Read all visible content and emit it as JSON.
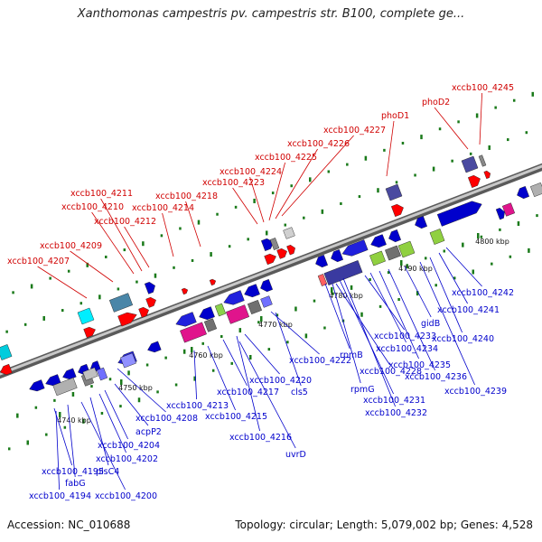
{
  "title": "Xanthomonas campestris pv. campestris str. B100, complete ge...",
  "footer": {
    "accession": "Accession: NC_010688",
    "summary": "Topology: circular; Length: 5,079,002 bp; Genes: 4,528"
  },
  "axis_ticks": [
    {
      "label": "4740 kbp"
    },
    {
      "label": "4750 kbp"
    },
    {
      "label": "4760 kbp"
    },
    {
      "label": "4770 kbp"
    },
    {
      "label": "4780 kbp"
    },
    {
      "label": "4790 kbp"
    },
    {
      "label": "4800 kbp"
    }
  ],
  "labels_top": [
    {
      "text": "xccb100_4207"
    },
    {
      "text": "xccb100_4209"
    },
    {
      "text": "xccb100_4210"
    },
    {
      "text": "xccb100_4211"
    },
    {
      "text": "xccb100_4212"
    },
    {
      "text": "xccb100_4214"
    },
    {
      "text": "xccb100_4218"
    },
    {
      "text": "xccb100_4223"
    },
    {
      "text": "xccb100_4224"
    },
    {
      "text": "xccb100_4225"
    },
    {
      "text": "xccb100_4226"
    },
    {
      "text": "xccb100_4227"
    },
    {
      "text": "phoD1"
    },
    {
      "text": "phoD2"
    },
    {
      "text": "xccb100_4245"
    }
  ],
  "labels_bottom": [
    {
      "text": "xccb100_4194"
    },
    {
      "text": "xccb100_4195"
    },
    {
      "text": "fabG"
    },
    {
      "text": "xccb100_4200"
    },
    {
      "text": "plsC4"
    },
    {
      "text": "xccb100_4202"
    },
    {
      "text": "xccb100_4204"
    },
    {
      "text": "acpP2"
    },
    {
      "text": "xccb100_4208"
    },
    {
      "text": "xccb100_4213"
    },
    {
      "text": "xccb100_4215"
    },
    {
      "text": "xccb100_4217"
    },
    {
      "text": "xccb100_4216"
    },
    {
      "text": "uvrD"
    },
    {
      "text": "xccb100_4220"
    },
    {
      "text": "cls5"
    },
    {
      "text": "xccb100_4222"
    },
    {
      "text": "rpmB"
    },
    {
      "text": "rpmG"
    },
    {
      "text": "xccb100_4228"
    },
    {
      "text": "xccb100_4231"
    },
    {
      "text": "xccb100_4232"
    },
    {
      "text": "xccb100_4233"
    },
    {
      "text": "xccb100_4234"
    },
    {
      "text": "xccb100_4235"
    },
    {
      "text": "xccb100_4236"
    },
    {
      "text": "gidB"
    },
    {
      "text": "xccb100_4239"
    },
    {
      "text": "xccb100_4240"
    },
    {
      "text": "xccb100_4241"
    },
    {
      "text": "xccb100_4242"
    }
  ],
  "colors": {
    "top_label": "#d00000",
    "bottom_label": "#0000cc",
    "backbone": "#8a8a8a",
    "tick": "#1a7a1a"
  }
}
